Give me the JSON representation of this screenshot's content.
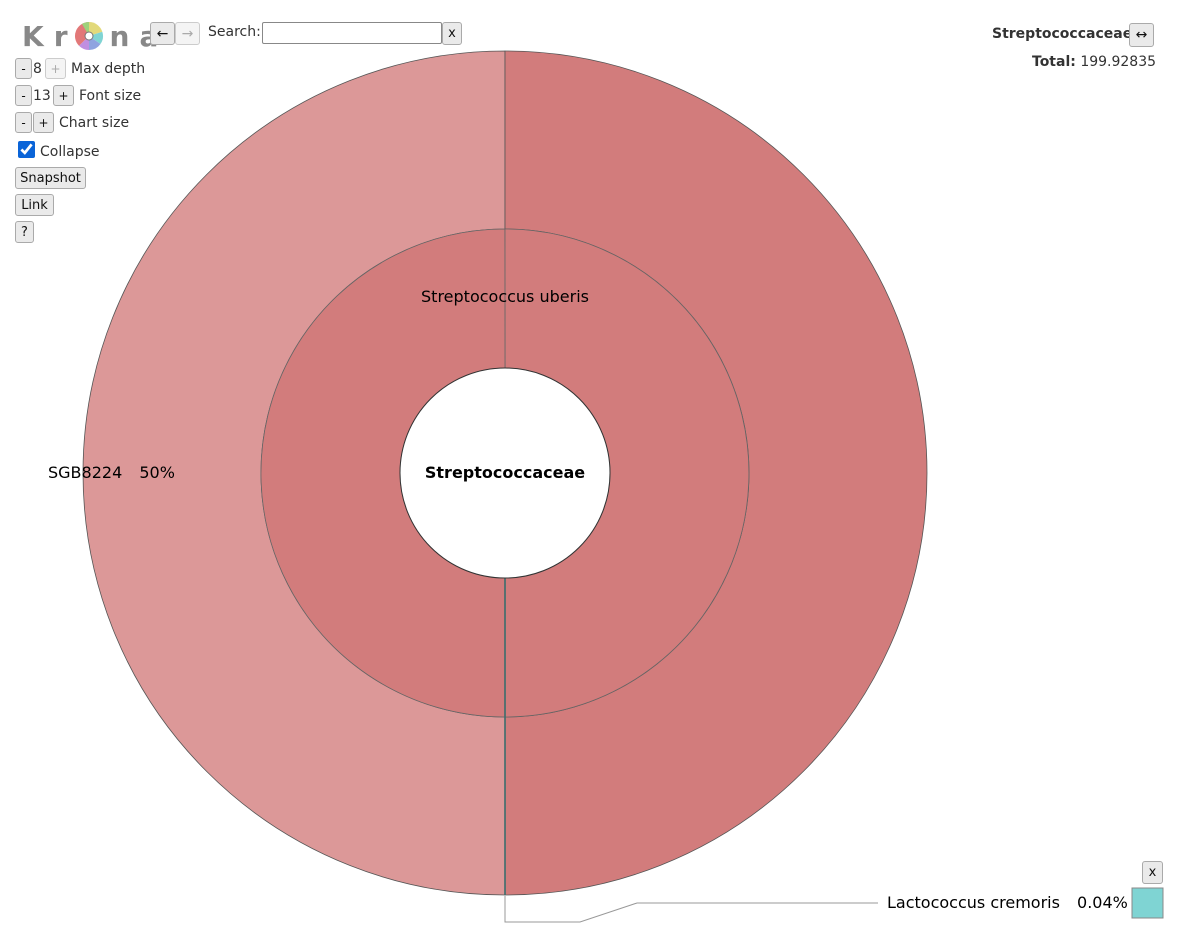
{
  "toolbar": {
    "logo_letters": [
      "K",
      "r",
      "n",
      "a"
    ],
    "back_label": "←",
    "forward_label": "→",
    "search_label": "Search:",
    "search_value": "",
    "search_clear_label": "x",
    "max_depth": {
      "minus": "-",
      "value": "8",
      "plus": "+",
      "label": "Max depth"
    },
    "font_size": {
      "minus": "-",
      "value": "13",
      "plus": "+",
      "label": "Font size"
    },
    "chart_size": {
      "minus": "-",
      "plus": "+",
      "label": "Chart size"
    },
    "collapse_label": "Collapse",
    "collapse_checked": true,
    "snapshot_label": "Snapshot",
    "link_label": "Link",
    "help_label": "?"
  },
  "details": {
    "title": "Streptococcaceae",
    "expand_label": "↔",
    "total_label": "Total:",
    "total_value": "199.92835"
  },
  "chart": {
    "center_label": "Streptococcaceae",
    "inner_label": "Streptococcus uberis",
    "outer_left_label": "SGB8224",
    "outer_left_percent": "50%",
    "callout_label": "Lactococcus cremoris",
    "callout_percent": "0.04%",
    "callout_close": "x",
    "colors": {
      "inner_ring": "#d27c7c",
      "outer_right": "#d27c7c",
      "outer_left": "#dc9898",
      "callout_swatch": "#7fd4d3"
    }
  }
}
